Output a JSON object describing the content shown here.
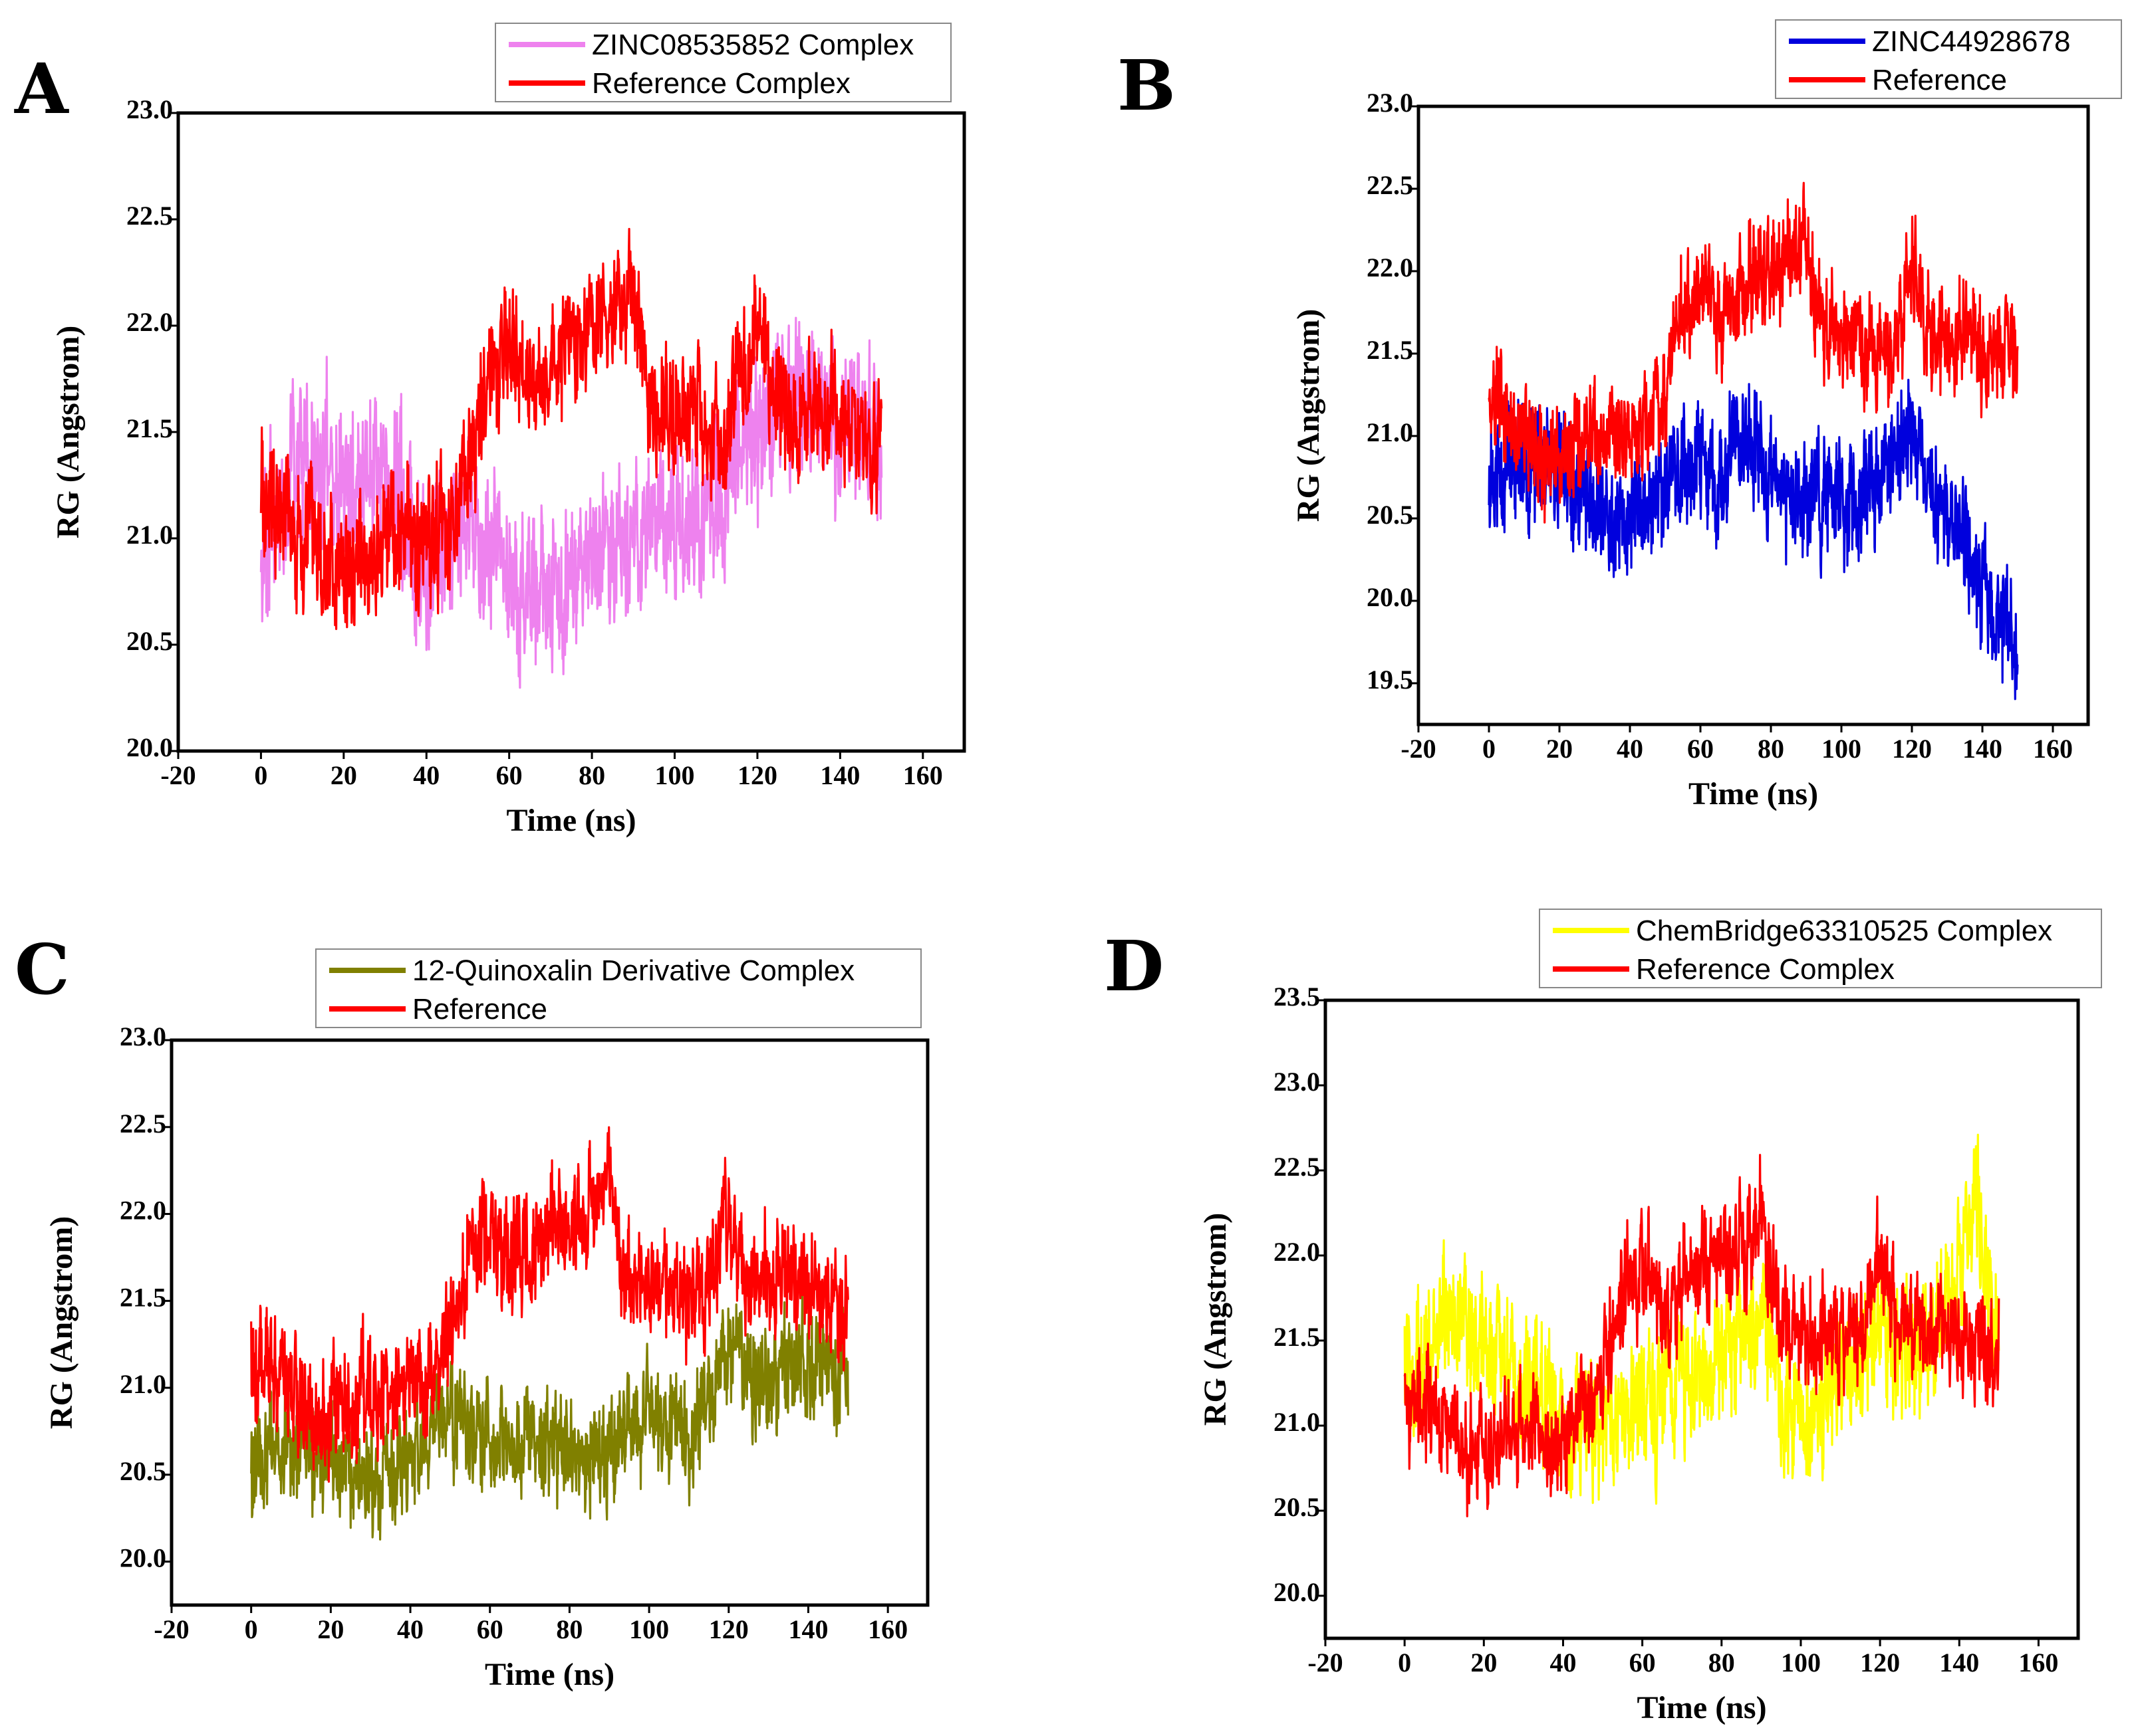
{
  "chart_data": [
    {
      "panel": "A",
      "type": "line",
      "title": "",
      "xlabel": "Time (ns)",
      "ylabel": "RG (Angstrom)",
      "xlim": [
        -20,
        170
      ],
      "ylim": [
        20.0,
        23.0
      ],
      "xticks": [
        "-20",
        "0",
        "20",
        "40",
        "60",
        "80",
        "100",
        "120",
        "140",
        "160"
      ],
      "yticks": [
        "20.0",
        "20.5",
        "21.0",
        "21.5",
        "22.0",
        "22.5",
        "23.0"
      ],
      "legend": "top-right",
      "series": [
        {
          "name": "ZINC08535852 Complex",
          "color": "#ee82ee",
          "x": [
            0,
            5,
            10,
            15,
            20,
            25,
            30,
            35,
            40,
            45,
            50,
            55,
            60,
            65,
            70,
            75,
            80,
            85,
            90,
            95,
            100,
            105,
            110,
            115,
            120,
            125,
            130,
            135,
            140,
            145,
            150
          ],
          "values": [
            20.9,
            21.2,
            21.4,
            21.3,
            21.3,
            21.25,
            21.35,
            21.1,
            20.85,
            21.0,
            21.1,
            20.95,
            20.85,
            20.75,
            20.7,
            20.85,
            20.9,
            20.95,
            21.0,
            21.05,
            21.1,
            21.1,
            21.15,
            21.35,
            21.55,
            21.6,
            21.7,
            21.6,
            21.55,
            21.5,
            21.45
          ],
          "spread": 0.35
        },
        {
          "name": "Reference Complex",
          "color": "#ff0000",
          "x": [
            0,
            5,
            10,
            15,
            20,
            25,
            30,
            35,
            40,
            45,
            50,
            55,
            60,
            65,
            70,
            75,
            80,
            85,
            90,
            95,
            100,
            105,
            110,
            115,
            120,
            125,
            130,
            135,
            140,
            145,
            150
          ],
          "values": [
            21.2,
            21.15,
            21.0,
            20.85,
            20.85,
            20.95,
            21.0,
            20.95,
            21.0,
            21.0,
            21.3,
            21.8,
            22.0,
            21.7,
            21.8,
            21.95,
            22.0,
            22.05,
            22.2,
            21.55,
            21.6,
            21.55,
            21.5,
            21.7,
            22.0,
            21.6,
            21.6,
            21.6,
            21.55,
            21.5,
            21.4
          ],
          "spread": 0.28
        }
      ]
    },
    {
      "panel": "B",
      "type": "line",
      "title": "",
      "xlabel": "Time (ns)",
      "ylabel": "RG (Angstrom)",
      "xlim": [
        -20,
        170
      ],
      "ylim": [
        19.25,
        23.0
      ],
      "xticks": [
        "-20",
        "0",
        "20",
        "40",
        "60",
        "80",
        "100",
        "120",
        "140",
        "160"
      ],
      "yticks": [
        "19.5",
        "20.0",
        "20.5",
        "21.0",
        "21.5",
        "22.0",
        "22.5",
        "23.0"
      ],
      "legend": "top-right",
      "series": [
        {
          "name": "ZINC44928678",
          "color": "#0000dd",
          "x": [
            0,
            5,
            10,
            15,
            20,
            25,
            30,
            35,
            40,
            45,
            50,
            55,
            60,
            65,
            70,
            75,
            80,
            85,
            90,
            95,
            100,
            105,
            110,
            115,
            120,
            125,
            130,
            135,
            140,
            145,
            150
          ],
          "values": [
            20.7,
            20.8,
            20.8,
            20.9,
            20.75,
            20.65,
            20.55,
            20.5,
            20.55,
            20.6,
            20.7,
            20.75,
            20.85,
            20.7,
            20.9,
            20.95,
            20.8,
            20.7,
            20.65,
            20.6,
            20.65,
            20.6,
            20.7,
            20.75,
            21.1,
            20.7,
            20.6,
            20.4,
            20.0,
            19.85,
            19.75
          ],
          "spread": 0.32
        },
        {
          "name": "Reference",
          "color": "#ff0000",
          "x": [
            0,
            5,
            10,
            15,
            20,
            25,
            30,
            35,
            40,
            45,
            50,
            55,
            60,
            65,
            70,
            75,
            80,
            85,
            90,
            95,
            100,
            105,
            110,
            115,
            120,
            125,
            130,
            135,
            140,
            145,
            150
          ],
          "values": [
            21.2,
            21.15,
            21.0,
            20.85,
            20.85,
            20.95,
            21.0,
            20.95,
            21.0,
            21.05,
            21.3,
            21.8,
            21.95,
            21.7,
            21.8,
            21.95,
            22.0,
            22.05,
            22.2,
            21.6,
            21.6,
            21.55,
            21.5,
            21.6,
            22.0,
            21.6,
            21.6,
            21.6,
            21.55,
            21.5,
            21.4
          ],
          "spread": 0.3
        }
      ]
    },
    {
      "panel": "C",
      "type": "line",
      "title": "",
      "xlabel": "Time (ns)",
      "ylabel": "RG (Angstrom)",
      "xlim": [
        -20,
        170
      ],
      "ylim": [
        19.75,
        23.0
      ],
      "xticks": [
        "-20",
        "0",
        "20",
        "40",
        "60",
        "80",
        "100",
        "120",
        "140",
        "160"
      ],
      "yticks": [
        "20.0",
        "20.5",
        "21.0",
        "21.5",
        "22.0",
        "22.5",
        "23.0"
      ],
      "legend": "top-right",
      "series": [
        {
          "name": "12-Quinoxalin Derivative Complex",
          "color": "#808000",
          "x": [
            0,
            5,
            10,
            15,
            20,
            25,
            30,
            35,
            40,
            45,
            50,
            55,
            60,
            65,
            70,
            75,
            80,
            85,
            90,
            95,
            100,
            105,
            110,
            115,
            120,
            125,
            130,
            135,
            140,
            145,
            150
          ],
          "values": [
            20.5,
            20.65,
            20.7,
            20.6,
            20.55,
            20.5,
            20.45,
            20.55,
            20.6,
            20.7,
            20.85,
            20.75,
            20.65,
            20.6,
            20.7,
            20.75,
            20.6,
            20.55,
            20.65,
            20.8,
            20.85,
            20.75,
            20.7,
            20.9,
            21.25,
            21.1,
            21.05,
            21.15,
            21.2,
            21.1,
            21.05
          ],
          "spread": 0.3
        },
        {
          "name": "Reference",
          "color": "#ff0000",
          "x": [
            0,
            5,
            10,
            15,
            20,
            25,
            30,
            35,
            40,
            45,
            50,
            55,
            60,
            65,
            70,
            75,
            80,
            85,
            90,
            95,
            100,
            105,
            110,
            115,
            120,
            125,
            130,
            135,
            140,
            145,
            150
          ],
          "values": [
            21.2,
            21.15,
            21.0,
            20.85,
            20.85,
            20.95,
            21.0,
            20.95,
            21.0,
            21.05,
            21.3,
            21.8,
            21.95,
            21.7,
            21.8,
            21.95,
            22.0,
            22.05,
            22.2,
            21.6,
            21.6,
            21.55,
            21.5,
            21.6,
            22.0,
            21.6,
            21.6,
            21.6,
            21.55,
            21.5,
            21.4
          ],
          "spread": 0.3
        }
      ]
    },
    {
      "panel": "D",
      "type": "line",
      "title": "",
      "xlabel": "Time (ns)",
      "ylabel": "RG (Angstrom)",
      "xlim": [
        -20,
        170
      ],
      "ylim": [
        19.75,
        23.5
      ],
      "xticks": [
        "-20",
        "0",
        "20",
        "40",
        "60",
        "80",
        "100",
        "120",
        "140",
        "160"
      ],
      "yticks": [
        "20.0",
        "20.5",
        "21.0",
        "21.5",
        "22.0",
        "22.5",
        "23.0",
        "23.5"
      ],
      "legend": "top-right",
      "series": [
        {
          "name": "ChemBridge63310525 Complex",
          "color": "#ffff00",
          "x": [
            0,
            5,
            10,
            15,
            20,
            25,
            30,
            35,
            40,
            45,
            50,
            55,
            60,
            65,
            70,
            75,
            80,
            85,
            90,
            95,
            100,
            105,
            110,
            115,
            120,
            125,
            130,
            135,
            140,
            145,
            150
          ],
          "values": [
            21.3,
            21.5,
            21.7,
            21.6,
            21.5,
            21.4,
            21.3,
            21.2,
            21.1,
            21.0,
            21.0,
            21.05,
            21.15,
            21.2,
            21.25,
            21.3,
            21.45,
            21.6,
            21.65,
            21.2,
            21.0,
            21.1,
            21.3,
            21.4,
            21.6,
            21.5,
            21.45,
            21.6,
            22.0,
            22.4,
            21.3
          ],
          "spread": 0.38
        },
        {
          "name": "Reference Complex",
          "color": "#ff0000",
          "x": [
            0,
            5,
            10,
            15,
            20,
            25,
            30,
            35,
            40,
            45,
            50,
            55,
            60,
            65,
            70,
            75,
            80,
            85,
            90,
            95,
            100,
            105,
            110,
            115,
            120,
            125,
            130,
            135,
            140,
            145,
            150
          ],
          "values": [
            21.2,
            21.15,
            21.0,
            20.85,
            20.85,
            20.95,
            21.0,
            20.95,
            21.0,
            21.05,
            21.3,
            21.8,
            21.95,
            21.7,
            21.8,
            21.95,
            22.0,
            22.05,
            22.2,
            21.6,
            21.6,
            21.55,
            21.5,
            21.6,
            22.0,
            21.6,
            21.6,
            21.6,
            21.55,
            21.5,
            21.4
          ],
          "spread": 0.3
        }
      ]
    }
  ]
}
